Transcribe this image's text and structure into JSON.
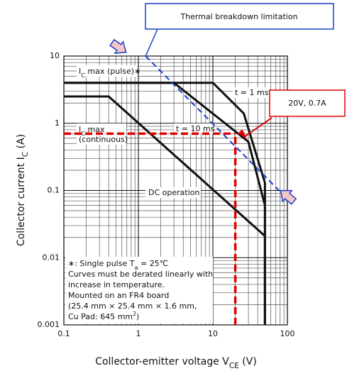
{
  "chart_data": {
    "type": "line",
    "xlabel": [
      {
        "t": "Collector-emitter voltage  V"
      },
      {
        "sub": "CE"
      },
      {
        "t": "  (V)"
      }
    ],
    "ylabel": [
      {
        "t": "Collector current  I"
      },
      {
        "sub": "C"
      },
      {
        "t": "  (A)"
      }
    ],
    "xscale": "log",
    "yscale": "log",
    "xlim": [
      0.1,
      100
    ],
    "ylim": [
      0.001,
      10
    ],
    "xticks": [
      0.1,
      1,
      10,
      100
    ],
    "yticks": [
      0.001,
      0.01,
      0.1,
      1,
      10
    ],
    "grid": true,
    "minor_grid": true,
    "series": [
      {
        "name": "t = 1 ms",
        "color": "#111111",
        "x": [
          0.1,
          10,
          26,
          50,
          50
        ],
        "values": [
          4,
          4,
          1.4,
          0.13,
          0.001
        ]
      },
      {
        "name": "t = 10 ms",
        "color": "#111111",
        "x": [
          0.1,
          3,
          30,
          50,
          50
        ],
        "values": [
          4,
          4,
          0.53,
          0.06,
          0.001
        ]
      },
      {
        "name": "DC operation",
        "color": "#111111",
        "x": [
          0.1,
          0.4,
          50,
          50
        ],
        "values": [
          2.5,
          2.5,
          0.021,
          0.001
        ]
      }
    ],
    "curve_labels": [
      {
        "parts": [
          {
            "t": "I"
          },
          {
            "sub": "C"
          },
          {
            "t": " max (pulse)∗"
          }
        ]
      },
      {
        "parts": [
          {
            "t": "I"
          },
          {
            "sub": "C"
          },
          {
            "t": " max"
          }
        ],
        "line2": "(continuous)"
      }
    ],
    "reference": {
      "x": 20,
      "y": 0.7,
      "label": "20V, 0.7A",
      "color": "#e00000"
    },
    "thermal_limit": {
      "label": "Thermal breakdown limitation",
      "color": "#1a3fcc",
      "x": [
        1.25,
        100
      ],
      "y": [
        10,
        0.075
      ]
    },
    "note": [
      [
        {
          "t": "∗:  Single pulse T"
        },
        {
          "sub": "a"
        },
        {
          "t": " = 25℃"
        }
      ],
      [
        {
          "t": "Curves must be derated linearly with"
        }
      ],
      [
        {
          "t": "increase in temperature."
        }
      ],
      [
        {
          "t": "Mounted on an FR4 board"
        }
      ],
      [
        {
          "t": "(25.4 mm × 25.4 mm × 1.6 mm,"
        }
      ],
      [
        {
          "t": "Cu Pad: 645 mm"
        },
        {
          "sup": "2"
        },
        {
          "t": ")"
        }
      ]
    ]
  }
}
